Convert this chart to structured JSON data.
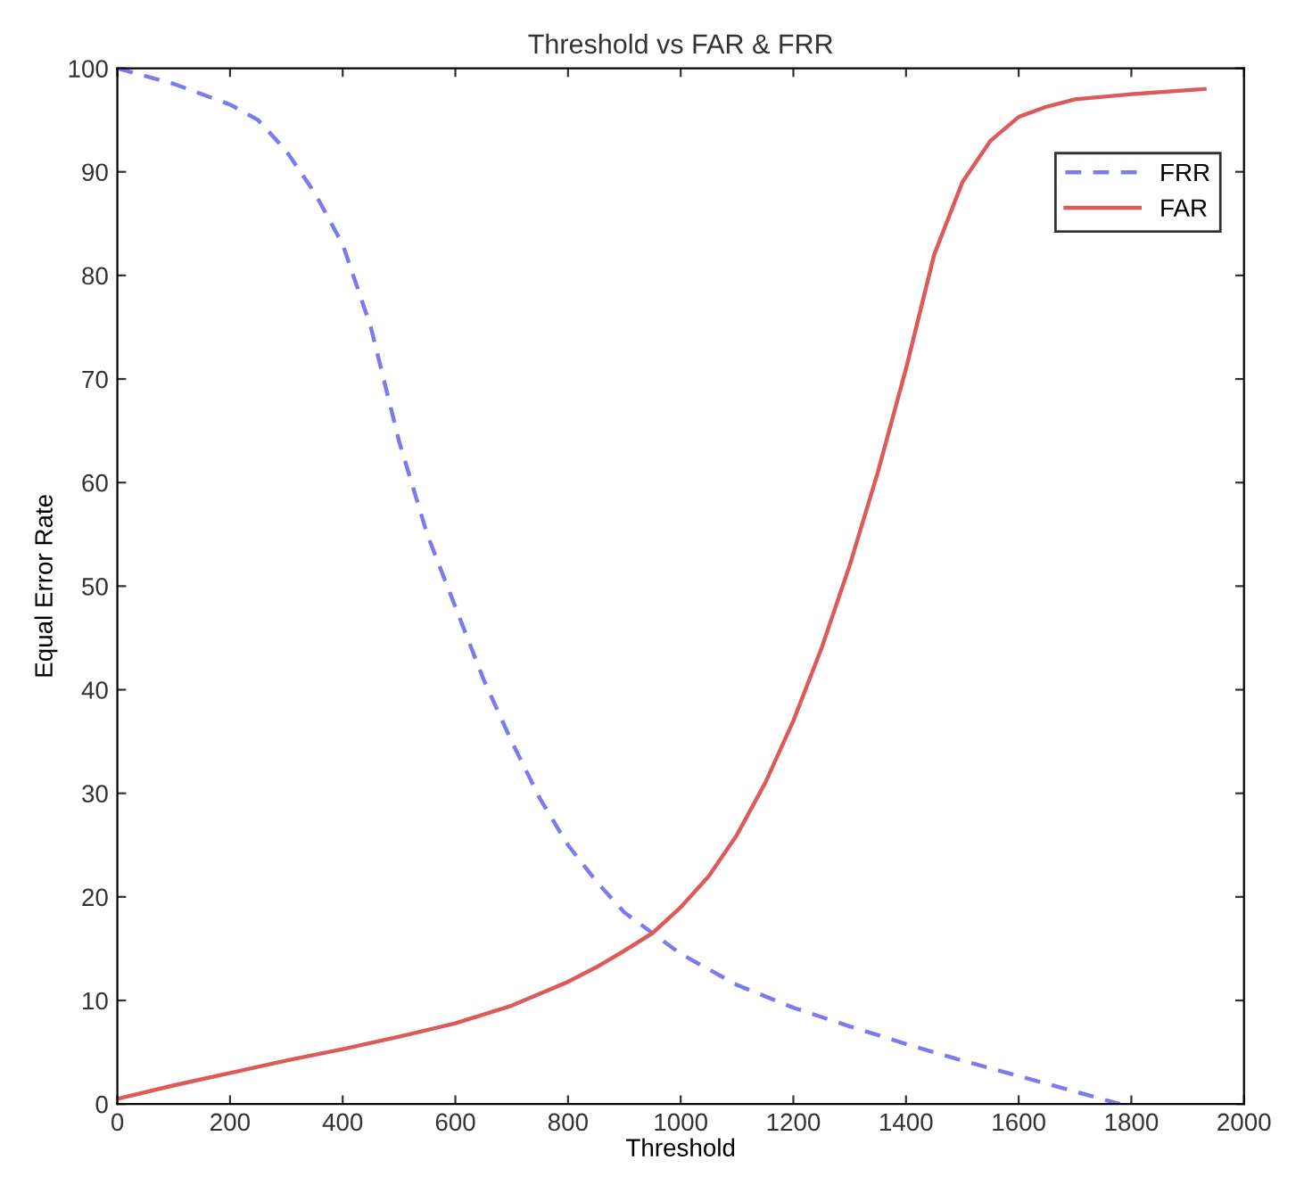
{
  "chart_data": {
    "type": "line",
    "title": "Threshold vs FAR & FRR",
    "xlabel": "Threshold",
    "ylabel": "Equal Error Rate",
    "xlim": [
      0,
      2000
    ],
    "ylim": [
      0,
      100
    ],
    "xticks": [
      0,
      200,
      400,
      600,
      800,
      1000,
      1200,
      1400,
      1600,
      1800,
      2000
    ],
    "yticks": [
      0,
      10,
      20,
      30,
      40,
      50,
      60,
      70,
      80,
      90,
      100
    ],
    "grid": false,
    "legend": "top right",
    "series": [
      {
        "name": "FRR",
        "color": "#7b7bee",
        "line_style": "dashed",
        "x": [
          0,
          100,
          200,
          250,
          300,
          350,
          400,
          450,
          500,
          550,
          600,
          650,
          700,
          750,
          800,
          850,
          900,
          950,
          1000,
          1100,
          1200,
          1300,
          1400,
          1500,
          1600,
          1700,
          1780
        ],
        "values": [
          100,
          98.5,
          96.5,
          95,
          92,
          88,
          83,
          75,
          64,
          55,
          48,
          41,
          35,
          29.5,
          25,
          21.5,
          18.5,
          16.5,
          14.5,
          11.5,
          9.3,
          7.5,
          5.8,
          4.2,
          2.7,
          1.2,
          0
        ]
      },
      {
        "name": "FAR",
        "color": "#dd5a5a",
        "line_style": "solid",
        "x": [
          0,
          100,
          200,
          300,
          400,
          500,
          600,
          700,
          800,
          850,
          900,
          950,
          1000,
          1050,
          1100,
          1150,
          1200,
          1250,
          1300,
          1350,
          1400,
          1450,
          1500,
          1550,
          1600,
          1650,
          1700,
          1800,
          1930
        ],
        "values": [
          0.5,
          1.8,
          3,
          4.2,
          5.3,
          6.5,
          7.8,
          9.5,
          11.8,
          13.2,
          14.8,
          16.5,
          19,
          22,
          26,
          31,
          37,
          44,
          52,
          61,
          71,
          82,
          89,
          93,
          95.3,
          96.3,
          97,
          97.5,
          98
        ]
      }
    ]
  }
}
